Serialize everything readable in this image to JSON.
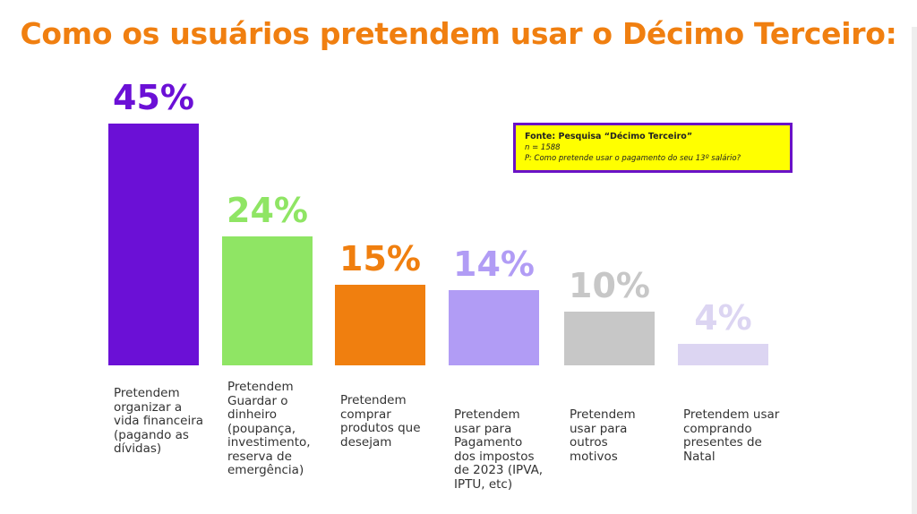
{
  "title": "Como os usuários pretendem usar o Décimo Terceiro:",
  "source": {
    "line1": "Fonte: Pesquisa “Décimo Terceiro”",
    "line2": "n = 1588",
    "line3": "P:  Como pretende usar o pagamento do seu 13º salário?"
  },
  "chart_data": {
    "type": "bar",
    "title": "Como os usuários pretendem usar o Décimo Terceiro:",
    "xlabel": "",
    "ylabel": "",
    "ylim": [
      0,
      45
    ],
    "grid": false,
    "categories": [
      "Pretendem organizar a vida financeira (pagando as dívidas)",
      "Pretendem Guardar o dinheiro (poupança, investimento, reserva de emergência)",
      "Pretendem comprar produtos que desejam",
      "Pretendem usar para Pagamento dos impostos de 2023 (IPVA, IPTU, etc)",
      "Pretendem usar para outros motivos",
      "Pretendem usar comprando presentes de Natal"
    ],
    "values": [
      45,
      24,
      15,
      14,
      10,
      4
    ],
    "data_labels": [
      "45%",
      "24%",
      "15%",
      "14%",
      "10%",
      "4%"
    ],
    "colors": [
      "#6b10d6",
      "#8fe564",
      "#f07f0f",
      "#b19cf5",
      "#c7c7c7",
      "#dcd5f2"
    ]
  },
  "label_lines": [
    "Pretendem\norganizar a\nvida financeira\n(pagando as\ndívidas)",
    "Pretendem\nGuardar o\ndinheiro\n(poupança,\ninvestimento,\nreserva de\nemergência)",
    "Pretendem\ncomprar\nprodutos que\ndesejam",
    "Pretendem\nusar para\nPagamento\ndos impostos\nde 2023 (IPVA,\nIPTU, etc)",
    "Pretendem\nusar para\noutros\nmotivos",
    "Pretendem usar\ncomprando\npresentes de\nNatal"
  ]
}
